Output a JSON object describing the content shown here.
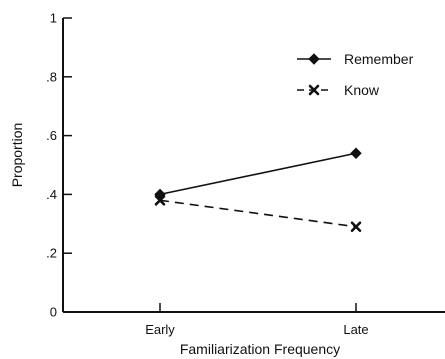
{
  "chart_data": {
    "type": "line",
    "title": "",
    "xlabel": "Familiarization Frequency",
    "ylabel": "Proportion",
    "categories": [
      "Early",
      "Late"
    ],
    "ylim": [
      0,
      1
    ],
    "y_ticks": [
      {
        "value": 0,
        "label": "0"
      },
      {
        "value": 0.2,
        "label": ".2"
      },
      {
        "value": 0.4,
        "label": ".4"
      },
      {
        "value": 0.6,
        "label": ".6"
      },
      {
        "value": 0.8,
        "label": ".8"
      },
      {
        "value": 1.0,
        "label": "1"
      }
    ],
    "grid": false,
    "legend_position": "top-right",
    "series": [
      {
        "name": "Remember",
        "values": [
          0.4,
          0.54
        ],
        "line_style": "solid",
        "marker": "diamond",
        "color": "#111111"
      },
      {
        "name": "Know",
        "values": [
          0.38,
          0.29
        ],
        "line_style": "dashed",
        "marker": "x",
        "color": "#111111"
      }
    ]
  }
}
